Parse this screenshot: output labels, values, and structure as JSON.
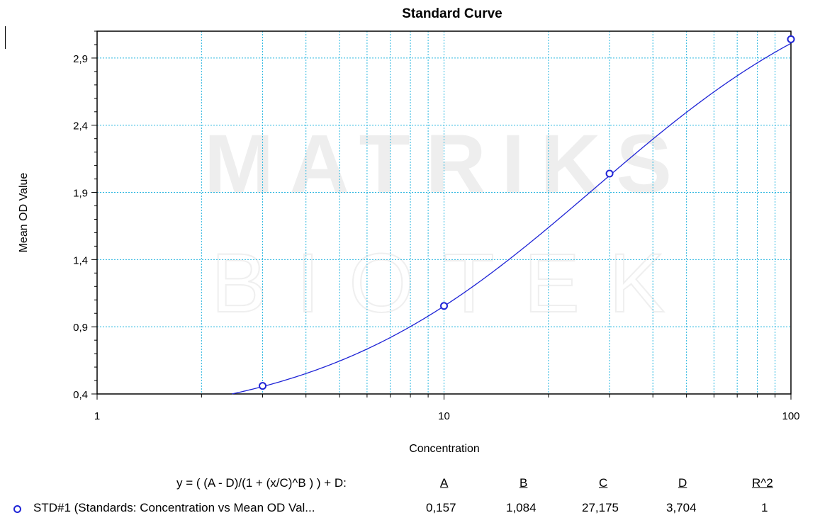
{
  "chart_data": {
    "type": "scatter",
    "title": "Standard Curve",
    "xlabel": "Concentration",
    "ylabel": "Mean OD Value",
    "x_scale": "log",
    "xlim": [
      1,
      100
    ],
    "ylim": [
      0.4,
      3.1
    ],
    "x_tick_labels": [
      "1",
      "10",
      "100"
    ],
    "y_tick_labels": [
      "0,4",
      "0,9",
      "1,4",
      "1,9",
      "2,4",
      "2,9"
    ],
    "y_ticks": [
      0.4,
      0.9,
      1.4,
      1.9,
      2.4,
      2.9
    ],
    "x_ticks": [
      1,
      10,
      100
    ],
    "grid": true,
    "grid_color": "#29b6e0",
    "series_color": "#1f24d6",
    "series": [
      {
        "name": "STD#1 (Standards: Concentration vs Mean OD Val...",
        "x": [
          3,
          10,
          30,
          100
        ],
        "y": [
          0.46,
          1.055,
          2.04,
          3.04
        ]
      }
    ],
    "fit": {
      "model": "4PL",
      "A": 0.157,
      "B": 1.084,
      "C": 27.175,
      "D": 3.704
    },
    "watermark": [
      "MATRIKS",
      "BIOTEK"
    ]
  },
  "fit_table": {
    "equation": "y = ( (A - D)/(1 + (x/C)^B ) ) + D:",
    "headers": [
      "A",
      "B",
      "C",
      "D",
      "R^2"
    ],
    "row": {
      "label": "STD#1 (Standards: Concentration vs Mean OD Val...",
      "values": [
        "0,157",
        "1,084",
        "27,175",
        "3,704",
        "1"
      ]
    }
  }
}
